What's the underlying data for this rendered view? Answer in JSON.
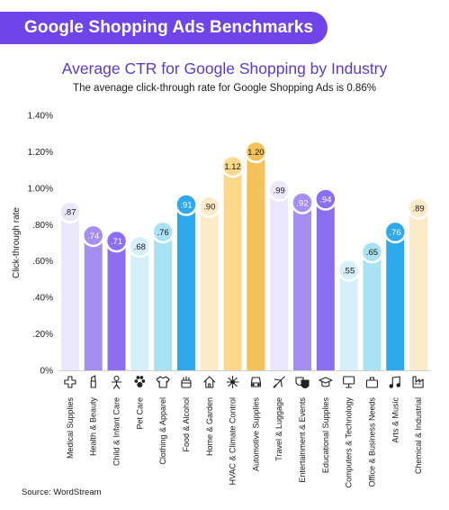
{
  "banner": {
    "title": "Google Shopping Ads Benchmarks"
  },
  "source": "Source: WordStream",
  "chart_data": {
    "type": "bar",
    "title": "Average CTR for Google Shopping by Industry",
    "subtitle": "The avenage click-through rate for Google Shopping Ads is 0.86%",
    "ylabel": "Click-through rate",
    "xlabel": "",
    "ylim": [
      0,
      1.4
    ],
    "grid": false,
    "yticks": [
      {
        "value": 0,
        "label": "0%"
      },
      {
        "value": 0.2,
        "label": ".20%"
      },
      {
        "value": 0.4,
        "label": ".40%"
      },
      {
        "value": 0.6,
        "label": ".60%"
      },
      {
        "value": 0.8,
        "label": ".80%"
      },
      {
        "value": 1.0,
        "label": "1.00%"
      },
      {
        "value": 1.2,
        "label": "1.20%"
      },
      {
        "value": 1.4,
        "label": "1.40%"
      }
    ],
    "categories": [
      "Medical Supplies",
      "Health & Beauty",
      "Child & Infant Care",
      "Pet Care",
      "Clothing & Apparel",
      "Food & Alcohol",
      "Home & Garden",
      "HVAC & Climate Control",
      "Automotive Supplies",
      "Travel & Luggage",
      "Entertainment & Events",
      "Educational Supplies",
      "Computers & Technology",
      "Office & Business Needs",
      "Arts & Music",
      "Chemical & Industrial"
    ],
    "values": [
      0.87,
      0.74,
      0.71,
      0.68,
      0.76,
      0.91,
      0.9,
      1.12,
      1.2,
      0.99,
      0.92,
      0.94,
      0.55,
      0.65,
      0.76,
      0.89
    ],
    "value_labels": [
      ".87",
      ".74",
      ".71",
      ".68",
      ".76",
      ".91",
      ".90",
      "1.12",
      "1.20",
      ".99",
      ".92",
      ".94",
      ".55",
      ".65",
      ".76",
      ".89"
    ],
    "colors": [
      "#ece8fb",
      "#a48ef0",
      "#8c6ff0",
      "#d6f0fa",
      "#a9e2f5",
      "#2fa8ec",
      "#fdebc8",
      "#fcd98a",
      "#f4c25a",
      "#ece8fb",
      "#a48ef0",
      "#8c6ff0",
      "#d6f0fa",
      "#a9e2f5",
      "#2fa8ec",
      "#fdebc8"
    ],
    "label_colors": [
      "#1a1a1a",
      "#ffffff",
      "#ffffff",
      "#1a1a1a",
      "#1a1a1a",
      "#ffffff",
      "#1a1a1a",
      "#1a1a1a",
      "#1a1a1a",
      "#1a1a1a",
      "#ffffff",
      "#ffffff",
      "#1a1a1a",
      "#1a1a1a",
      "#ffffff",
      "#1a1a1a"
    ],
    "icons": [
      "medical-cross-icon",
      "lipstick-icon",
      "baby-icon",
      "paw-icon",
      "shirt-icon",
      "cup-icon",
      "house-icon",
      "fan-icon",
      "car-icon",
      "airplane-icon",
      "theater-masks-icon",
      "graduation-cap-icon",
      "monitor-icon",
      "briefcase-icon",
      "music-note-icon",
      "factory-icon"
    ]
  }
}
